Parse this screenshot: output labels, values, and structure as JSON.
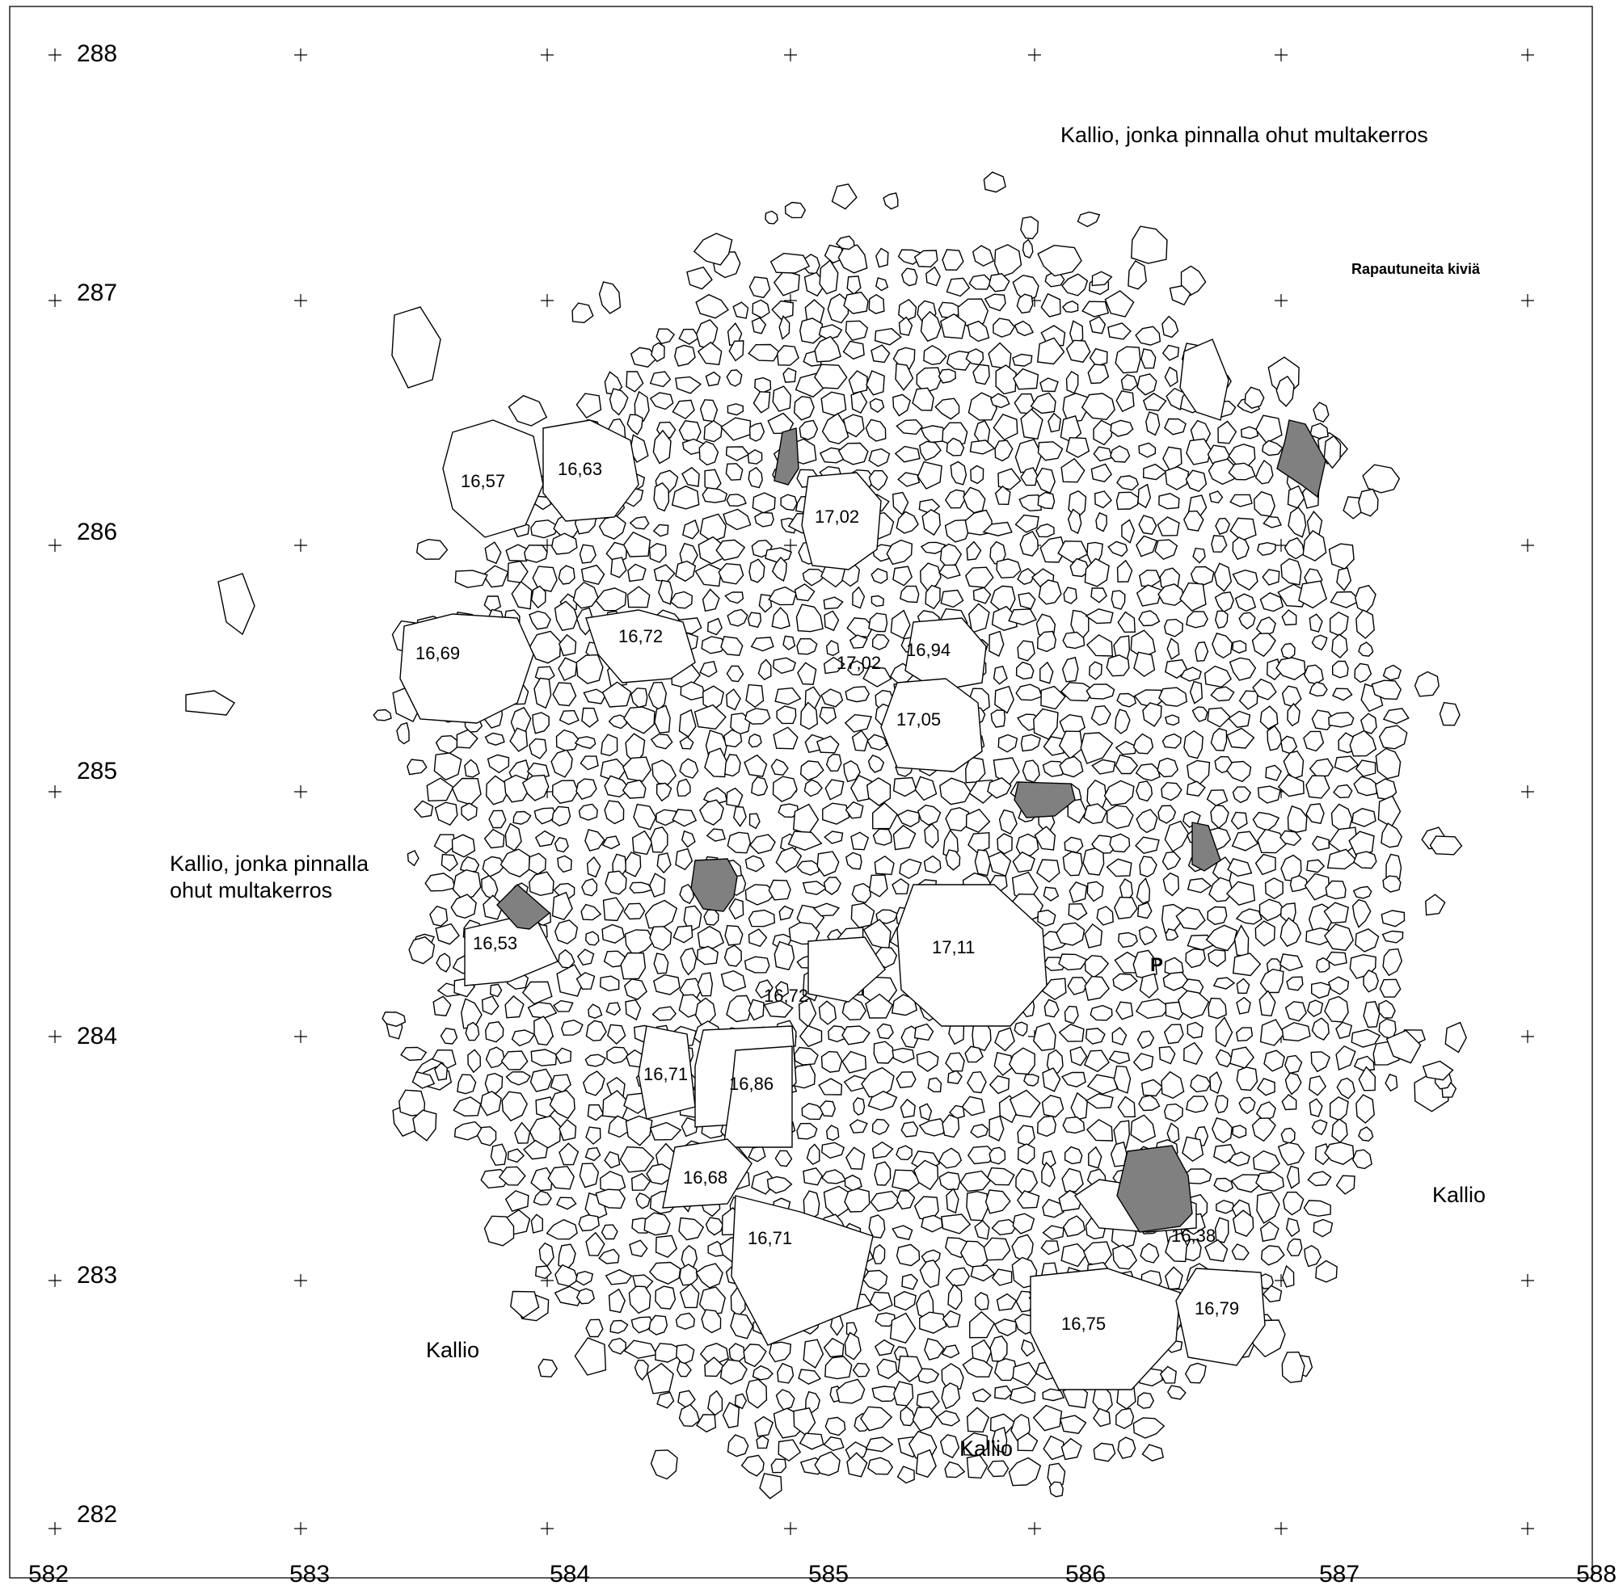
{
  "map": {
    "axis": {
      "y_labels": [
        "288",
        "287",
        "286",
        "285",
        "284",
        "283",
        "282"
      ],
      "x_labels": [
        "582",
        "583",
        "584",
        "585",
        "586",
        "587",
        "588"
      ]
    },
    "area_labels": {
      "top": "Kallio, jonka pinnalla ohut multakerros",
      "left_line1": "Kallio, jonka pinnalla",
      "left_line2": "ohut multakerros",
      "weathered": "Rapautuneita kiviä",
      "rock_right": "Kallio",
      "rock_left": "Kallio",
      "rock_bottom": "Kallio"
    },
    "point_marker": "P",
    "elevations": [
      "16,57",
      "16,63",
      "17,02",
      "16,69",
      "16,72",
      "17,02",
      "16,94",
      "17,05",
      "16,53",
      "17,11",
      "16,72",
      "16,71",
      "16,86",
      "16,68",
      "16,71",
      "16,38",
      "16,75",
      "16,79"
    ],
    "colors": {
      "dark_stone": "#808080",
      "outline": "#000000"
    }
  }
}
